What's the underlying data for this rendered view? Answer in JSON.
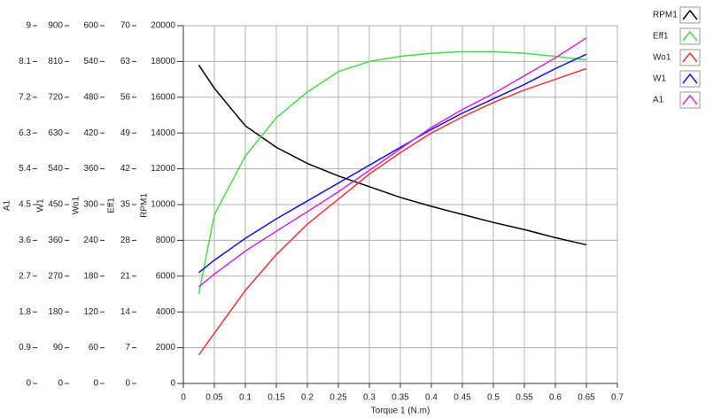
{
  "chart_data": {
    "type": "line",
    "x_label": "Torque 1 (N.m)",
    "xlim": [
      0,
      0.7
    ],
    "xticks": [
      0,
      0.05,
      0.1,
      0.15,
      0.2,
      0.25,
      0.3,
      0.35,
      0.4,
      0.45,
      0.5,
      0.55,
      0.6,
      0.65,
      0.7
    ],
    "grid": true,
    "axes": [
      {
        "label": "A1",
        "lim": [
          0,
          9
        ],
        "ticks": [
          0,
          0.9,
          1.8,
          2.7,
          3.6,
          4.5,
          5.4,
          6.3,
          7.2,
          8.1,
          9
        ]
      },
      {
        "label": "W1",
        "lim": [
          0,
          900
        ],
        "ticks": [
          0,
          90,
          180,
          270,
          360,
          450,
          540,
          630,
          720,
          810,
          900
        ]
      },
      {
        "label": "Wo1",
        "lim": [
          0,
          600
        ],
        "ticks": [
          0,
          60,
          120,
          180,
          240,
          300,
          360,
          420,
          480,
          540,
          600
        ]
      },
      {
        "label": "Eff1",
        "lim": [
          0,
          70
        ],
        "ticks": [
          0,
          7,
          14,
          21,
          28,
          35,
          42,
          49,
          56,
          63,
          70
        ]
      },
      {
        "label": "RPM1",
        "lim": [
          0,
          20000
        ],
        "ticks": [
          0,
          2000,
          4000,
          6000,
          8000,
          10000,
          12000,
          14000,
          16000,
          18000,
          20000
        ]
      }
    ],
    "x": [
      0.025,
      0.05,
      0.1,
      0.15,
      0.2,
      0.25,
      0.3,
      0.35,
      0.4,
      0.45,
      0.5,
      0.55,
      0.6,
      0.65
    ],
    "series": [
      {
        "name": "RPM1",
        "color": "#000000",
        "axis": 4,
        "values": [
          17800,
          16500,
          14400,
          13200,
          12300,
          11600,
          11000,
          10400,
          9900,
          9450,
          9000,
          8600,
          8150,
          7750
        ]
      },
      {
        "name": "Eff1",
        "color": "#44dd44",
        "axis": 3,
        "values": [
          17.5,
          33,
          44.5,
          52,
          57,
          61,
          63,
          64,
          64.6,
          64.9,
          64.9,
          64.6,
          64,
          63.3
        ]
      },
      {
        "name": "Wo1",
        "color": "#ee3333",
        "axis": 2,
        "values": [
          48,
          84,
          156,
          216,
          267,
          309,
          351,
          387,
          420,
          447,
          471,
          492,
          510,
          528
        ]
      },
      {
        "name": "W1",
        "color": "#1111dd",
        "axis": 1,
        "values": [
          279,
          310,
          365,
          414,
          459,
          504,
          549,
          594,
          639,
          680,
          716,
          752,
          792,
          828
        ]
      },
      {
        "name": "A1",
        "color": "#dd22dd",
        "axis": 0,
        "values": [
          2.43,
          2.75,
          3.33,
          3.83,
          4.32,
          4.82,
          5.36,
          5.9,
          6.44,
          6.89,
          7.29,
          7.74,
          8.19,
          8.69
        ]
      }
    ]
  }
}
